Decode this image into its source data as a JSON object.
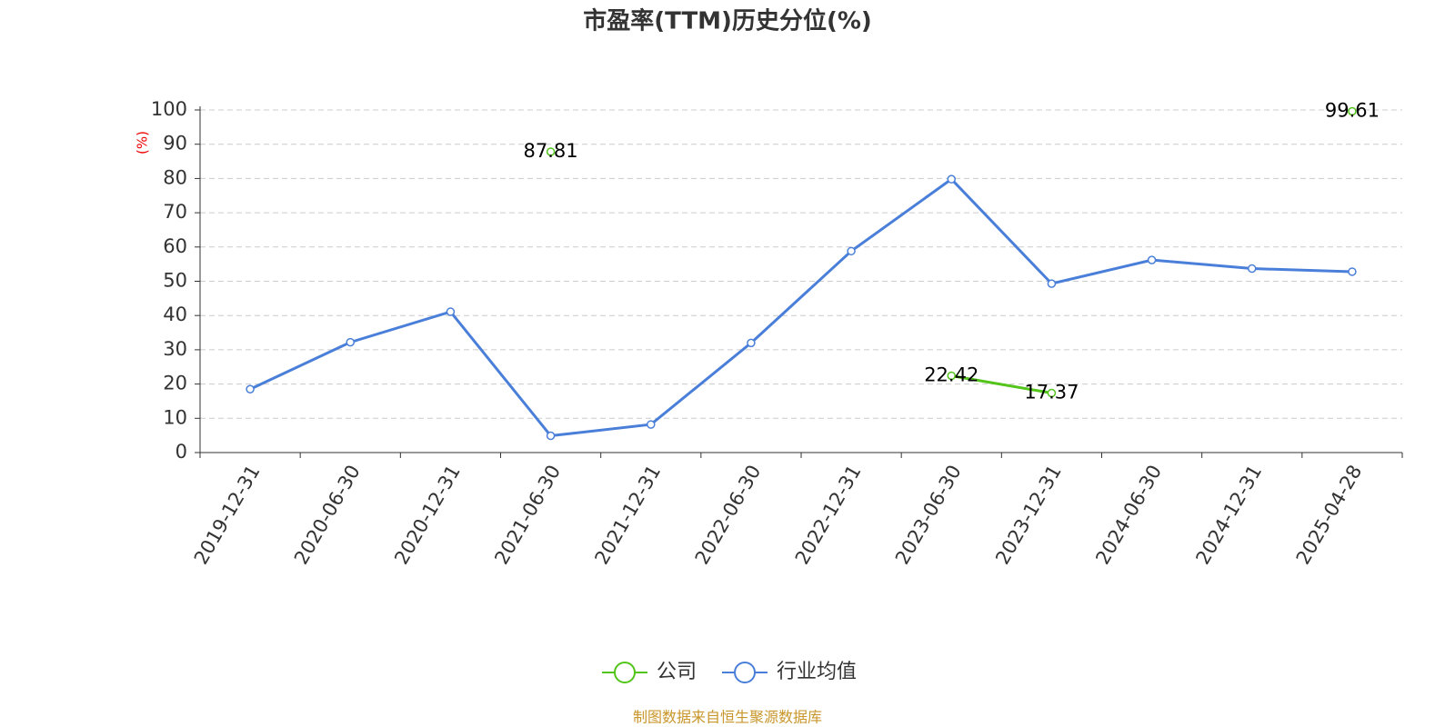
{
  "chart_data": {
    "type": "line",
    "title": "市盈率(TTM)历史分位(%)",
    "y_label": "(%)",
    "categories": [
      "2019-12-31",
      "2020-06-30",
      "2020-12-31",
      "2021-06-30",
      "2021-12-31",
      "2022-06-30",
      "2022-12-31",
      "2023-06-30",
      "2023-12-31",
      "2024-06-30",
      "2024-12-31",
      "2025-04-28"
    ],
    "series": [
      {
        "name": "公司",
        "color": "#52c41a",
        "values": [
          null,
          null,
          null,
          87.81,
          null,
          null,
          null,
          22.42,
          17.37,
          null,
          null,
          99.61
        ],
        "data_labels": true
      },
      {
        "name": "行业均值",
        "color": "#4a7fd9",
        "values": [
          18.5,
          32.2,
          41.1,
          4.9,
          8.2,
          32.0,
          58.8,
          79.8,
          49.3,
          56.2,
          53.7,
          52.8
        ],
        "data_labels": false
      }
    ],
    "ylim": [
      0,
      100
    ],
    "yticks": [
      0,
      10,
      20,
      30,
      40,
      50,
      60,
      70,
      80,
      90,
      100
    ],
    "grid": true,
    "legend": "bottom",
    "source": "制图数据来自恒生聚源数据库"
  }
}
